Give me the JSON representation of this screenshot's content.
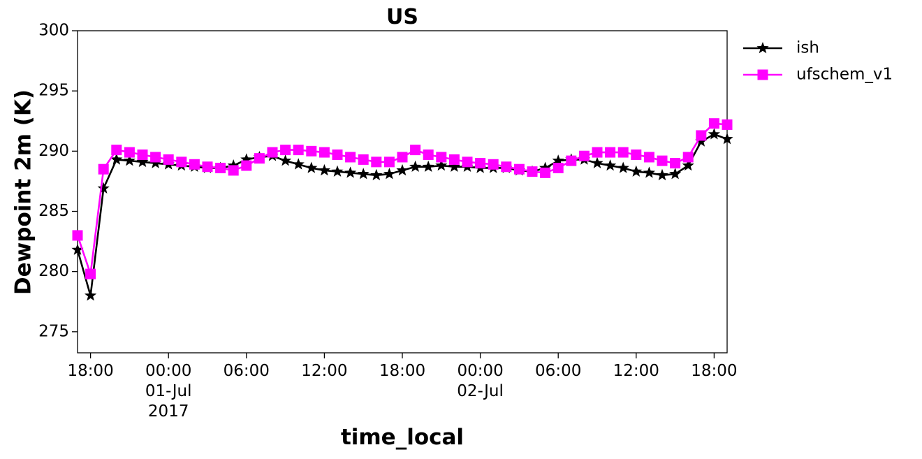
{
  "chart_data": {
    "type": "line",
    "title": "US",
    "xlabel": "time_local",
    "ylabel": "Dewpoint 2m (K)",
    "x": [
      "2017-06-30T17:00",
      "2017-06-30T18:00",
      "2017-06-30T19:00",
      "2017-06-30T20:00",
      "2017-06-30T21:00",
      "2017-06-30T22:00",
      "2017-06-30T23:00",
      "2017-07-01T00:00",
      "2017-07-01T01:00",
      "2017-07-01T02:00",
      "2017-07-01T03:00",
      "2017-07-01T04:00",
      "2017-07-01T05:00",
      "2017-07-01T06:00",
      "2017-07-01T07:00",
      "2017-07-01T08:00",
      "2017-07-01T09:00",
      "2017-07-01T10:00",
      "2017-07-01T11:00",
      "2017-07-01T12:00",
      "2017-07-01T13:00",
      "2017-07-01T14:00",
      "2017-07-01T15:00",
      "2017-07-01T16:00",
      "2017-07-01T17:00",
      "2017-07-01T18:00",
      "2017-07-01T19:00",
      "2017-07-01T20:00",
      "2017-07-01T21:00",
      "2017-07-01T22:00",
      "2017-07-01T23:00",
      "2017-07-02T00:00",
      "2017-07-02T01:00",
      "2017-07-02T02:00",
      "2017-07-02T03:00",
      "2017-07-02T04:00",
      "2017-07-02T05:00",
      "2017-07-02T06:00",
      "2017-07-02T07:00",
      "2017-07-02T08:00",
      "2017-07-02T09:00",
      "2017-07-02T10:00",
      "2017-07-02T11:00",
      "2017-07-02T12:00",
      "2017-07-02T13:00",
      "2017-07-02T14:00",
      "2017-07-02T15:00",
      "2017-07-02T16:00",
      "2017-07-02T17:00",
      "2017-07-02T18:00",
      "2017-07-02T19:00"
    ],
    "series": [
      {
        "name": "ish",
        "color": "#000000",
        "marker": "star",
        "values": [
          281.8,
          278.0,
          286.9,
          289.3,
          289.2,
          289.1,
          289.0,
          288.9,
          288.8,
          288.7,
          288.6,
          288.6,
          288.8,
          289.3,
          289.5,
          289.6,
          289.2,
          288.9,
          288.6,
          288.4,
          288.3,
          288.2,
          288.1,
          288.0,
          288.1,
          288.4,
          288.7,
          288.7,
          288.8,
          288.7,
          288.7,
          288.6,
          288.6,
          288.6,
          288.4,
          288.3,
          288.6,
          289.2,
          289.3,
          289.3,
          289.0,
          288.8,
          288.6,
          288.3,
          288.2,
          288.0,
          288.1,
          288.8,
          290.8,
          291.4,
          291.0
        ]
      },
      {
        "name": "ufschem_v1",
        "color": "#ff00ff",
        "marker": "square",
        "values": [
          283.0,
          279.8,
          288.5,
          290.1,
          289.9,
          289.7,
          289.5,
          289.3,
          289.1,
          288.9,
          288.7,
          288.6,
          288.4,
          288.8,
          289.4,
          289.9,
          290.1,
          290.1,
          290.0,
          289.9,
          289.7,
          289.5,
          289.3,
          289.1,
          289.1,
          289.5,
          290.1,
          289.7,
          289.5,
          289.3,
          289.1,
          289.0,
          288.9,
          288.7,
          288.5,
          288.3,
          288.2,
          288.6,
          289.2,
          289.6,
          289.9,
          289.9,
          289.9,
          289.7,
          289.5,
          289.2,
          289.0,
          289.5,
          291.3,
          292.3,
          292.2
        ]
      }
    ],
    "xlim": [
      "2017-06-30T17:00",
      "2017-07-02T19:00"
    ],
    "xticks": [
      {
        "value": "2017-06-30T18:00",
        "label": "18:00"
      },
      {
        "value": "2017-07-01T00:00",
        "label": "00:00\n01-Jul\n2017"
      },
      {
        "value": "2017-07-01T06:00",
        "label": "06:00"
      },
      {
        "value": "2017-07-01T12:00",
        "label": "12:00"
      },
      {
        "value": "2017-07-01T18:00",
        "label": "18:00"
      },
      {
        "value": "2017-07-02T00:00",
        "label": "00:00\n02-Jul"
      },
      {
        "value": "2017-07-02T06:00",
        "label": "06:00"
      },
      {
        "value": "2017-07-02T12:00",
        "label": "12:00"
      },
      {
        "value": "2017-07-02T18:00",
        "label": "18:00"
      }
    ],
    "ylim": [
      273.25,
      300
    ],
    "yticks": [
      275,
      280,
      285,
      290,
      295,
      300
    ],
    "grid": false,
    "legend": "outside-upper-right"
  }
}
